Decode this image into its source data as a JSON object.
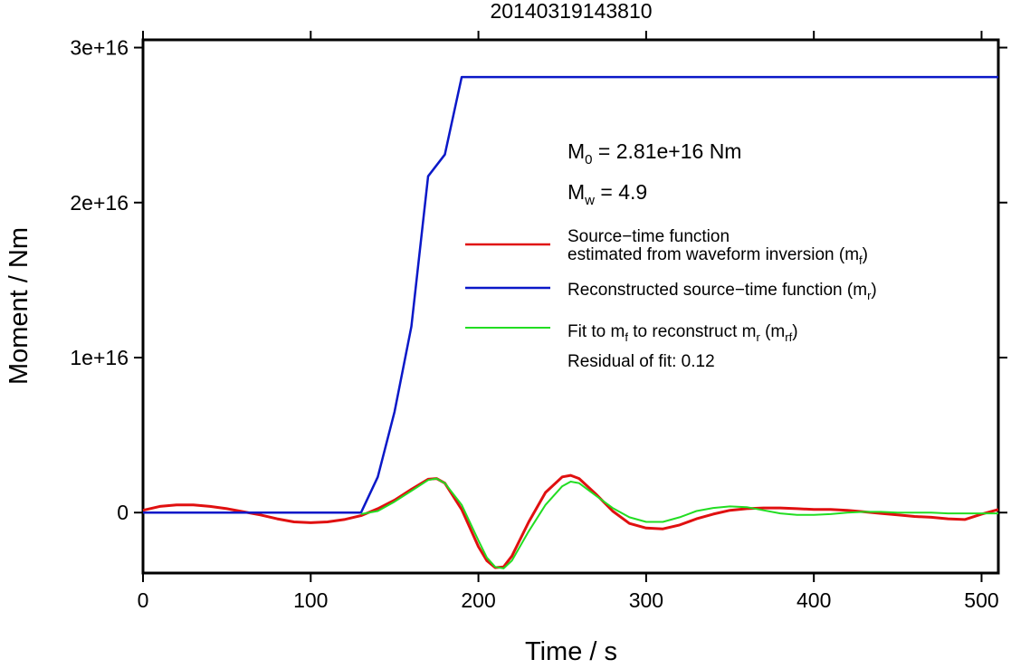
{
  "chart_data": {
    "type": "line",
    "title": "20140319143810",
    "xlabel": "Time / s",
    "ylabel": "Moment / Nm",
    "xlim": [
      0,
      510
    ],
    "ylim": [
      -3900000000000000.0,
      3.05e+16
    ],
    "x_ticks": [
      0,
      100,
      200,
      300,
      400,
      500
    ],
    "x_tick_labels": [
      "0",
      "100",
      "200",
      "300",
      "400",
      "500"
    ],
    "y_ticks": [
      0,
      1e+16,
      2e+16,
      3e+16
    ],
    "y_tick_labels": [
      "0",
      "1e+16",
      "2e+16",
      "3e+16"
    ],
    "grid": false,
    "legend_position": "top-right",
    "annotations": {
      "m0_label": "M",
      "m0_sub": "0",
      "m0_value": " = 2.81e+16 Nm",
      "mw_label": "M",
      "mw_sub": "w",
      "mw_value": " = 4.9",
      "residual": "Residual of fit: 0.12"
    },
    "legend": {
      "red_line1": "Source−time function",
      "red_line2": "estimated from waveform inversion (m",
      "red_sub": "f",
      "red_close": ")",
      "blue_text": "Reconstructed source−time function (m",
      "blue_sub": "r",
      "blue_close": ")",
      "green_a": "Fit to m",
      "green_sub1": "f",
      "green_b": " to reconstruct m",
      "green_sub2": "r",
      "green_c": " (m",
      "green_sub3": "rf",
      "green_d": ")"
    },
    "series": [
      {
        "color": "#e01010",
        "x": [
          0,
          10,
          20,
          30,
          40,
          50,
          60,
          70,
          80,
          90,
          100,
          110,
          120,
          130,
          140,
          150,
          160,
          170,
          175,
          180,
          190,
          200,
          205,
          210,
          215,
          220,
          230,
          240,
          250,
          255,
          260,
          270,
          280,
          290,
          300,
          310,
          320,
          330,
          340,
          350,
          360,
          370,
          380,
          390,
          400,
          410,
          420,
          430,
          440,
          450,
          460,
          470,
          480,
          490,
          500,
          510
        ],
        "y": [
          150000000000000.0,
          400000000000000.0,
          500000000000000.0,
          500000000000000.0,
          400000000000000.0,
          250000000000000.0,
          50000000000000.0,
          -150000000000000.0,
          -400000000000000.0,
          -600000000000000.0,
          -650000000000000.0,
          -600000000000000.0,
          -450000000000000.0,
          -200000000000000.0,
          250000000000000.0,
          800000000000000.0,
          1500000000000000.0,
          2150000000000000.0,
          2200000000000000.0,
          1900000000000000.0,
          200000000000000.0,
          -2200000000000000.0,
          -3100000000000000.0,
          -3550000000000000.0,
          -3500000000000000.0,
          -2800000000000000.0,
          -600000000000000.0,
          1300000000000000.0,
          2300000000000000.0,
          2400000000000000.0,
          2200000000000000.0,
          1200000000000000.0,
          100000000000000.0,
          -700000000000000.0,
          -1000000000000000.0,
          -1050000000000000.0,
          -800000000000000.0,
          -400000000000000.0,
          -100000000000000.0,
          150000000000000.0,
          250000000000000.0,
          300000000000000.0,
          300000000000000.0,
          250000000000000.0,
          200000000000000.0,
          200000000000000.0,
          150000000000000.0,
          50000000000000.0,
          -50000000000000.0,
          -150000000000000.0,
          -250000000000000.0,
          -300000000000000.0,
          -400000000000000.0,
          -450000000000000.0,
          -100000000000000.0,
          200000000000000.0
        ]
      },
      {
        "color": "#0a18c8",
        "x": [
          0,
          130,
          140,
          150,
          160,
          170,
          180,
          190,
          510
        ],
        "y": [
          0,
          0,
          2300000000000000.0,
          6500000000000000.0,
          1.2e+16,
          2.17e+16,
          2.31e+16,
          2.81e+16,
          2.81e+16
        ]
      },
      {
        "color": "#22dd22",
        "x": [
          130,
          140,
          150,
          160,
          170,
          175,
          180,
          190,
          200,
          205,
          210,
          215,
          220,
          230,
          240,
          250,
          255,
          260,
          270,
          280,
          290,
          300,
          310,
          320,
          330,
          340,
          350,
          360,
          370,
          380,
          390,
          400,
          410,
          420,
          430,
          440,
          450,
          460,
          470,
          480,
          490,
          500,
          510
        ],
        "y": [
          -100000000000000.0,
          100000000000000.0,
          700000000000000.0,
          1400000000000000.0,
          2100000000000000.0,
          2200000000000000.0,
          1900000000000000.0,
          500000000000000.0,
          -1800000000000000.0,
          -2900000000000000.0,
          -3500000000000000.0,
          -3600000000000000.0,
          -3100000000000000.0,
          -1200000000000000.0,
          500000000000000.0,
          1700000000000000.0,
          2000000000000000.0,
          1900000000000000.0,
          1100000000000000.0,
          300000000000000.0,
          -300000000000000.0,
          -600000000000000.0,
          -600000000000000.0,
          -300000000000000.0,
          100000000000000.0,
          300000000000000.0,
          400000000000000.0,
          350000000000000.0,
          150000000000000.0,
          -50000000000000.0,
          -150000000000000.0,
          -150000000000000.0,
          -100000000000000.0,
          0,
          50000000000000.0,
          50000000000000.0,
          0,
          0,
          0,
          -50000000000000.0,
          -50000000000000.0,
          -50000000000000.0,
          -50000000000000.0
        ]
      }
    ]
  }
}
